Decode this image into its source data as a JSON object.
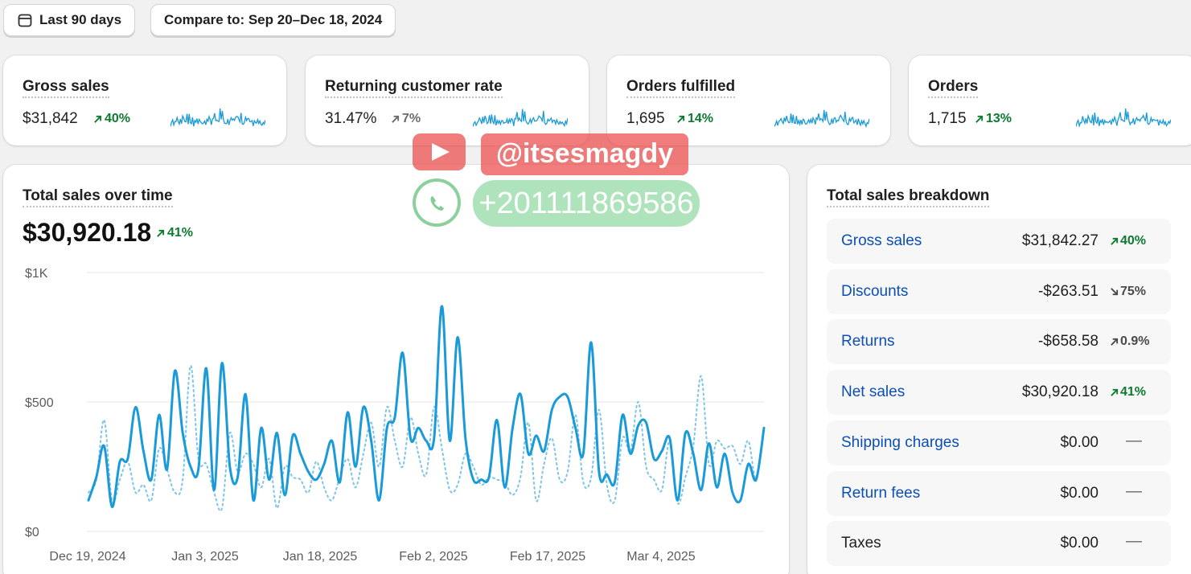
{
  "toolbar": {
    "date_range_label": "Last 90 days",
    "compare_label": "Compare to: Sep 20–Dec 18, 2024"
  },
  "metrics": [
    {
      "title": "Gross sales",
      "value": "$31,842",
      "delta": "40%",
      "trend": "up"
    },
    {
      "title": "Returning customer rate",
      "value": "31.47%",
      "delta": "7%",
      "trend": "neutral"
    },
    {
      "title": "Orders fulfilled",
      "value": "1,695",
      "delta": "14%",
      "trend": "up"
    },
    {
      "title": "Orders",
      "value": "1,715",
      "delta": "13%",
      "trend": "up"
    }
  ],
  "sales_chart": {
    "title": "Total sales over time",
    "total": "$30,920.18",
    "delta": "41%"
  },
  "chart_data": {
    "type": "line",
    "y_ticks": [
      "$1K",
      "$500",
      "$0"
    ],
    "ylim": [
      0,
      1000
    ],
    "x_ticks": [
      "Dec 19, 2024",
      "Jan 3, 2025",
      "Jan 18, 2025",
      "Feb 2, 2025",
      "Feb 17, 2025",
      "Mar 4, 2025"
    ],
    "x_range_days": [
      0,
      90
    ],
    "series": [
      {
        "style": "solid",
        "color": "#1a9ad9",
        "values": [
          120,
          210,
          330,
          95,
          270,
          280,
          480,
          310,
          200,
          450,
          240,
          620,
          380,
          250,
          240,
          630,
          160,
          650,
          250,
          210,
          530,
          120,
          400,
          200,
          380,
          140,
          370,
          300,
          230,
          200,
          260,
          350,
          190,
          460,
          250,
          480,
          350,
          120,
          400,
          440,
          690,
          360,
          400,
          350,
          360,
          870,
          350,
          750,
          360,
          200,
          200,
          210,
          430,
          170,
          400,
          530,
          300,
          370,
          310,
          470,
          520,
          520,
          400,
          300,
          730,
          230,
          220,
          190,
          450,
          300,
          410,
          420,
          280,
          310,
          360,
          120,
          380,
          300,
          160,
          340,
          170,
          300,
          150,
          120,
          260,
          200,
          400
        ]
      },
      {
        "style": "dotted",
        "color": "#7cc4e8",
        "values": [
          150,
          200,
          430,
          120,
          200,
          270,
          150,
          180,
          120,
          320,
          240,
          150,
          200,
          640,
          280,
          260,
          150,
          90,
          380,
          230,
          300,
          260,
          170,
          280,
          90,
          250,
          210,
          200,
          150,
          270,
          170,
          120,
          210,
          280,
          170,
          300,
          420,
          250,
          480,
          350,
          250,
          440,
          300,
          220,
          480,
          320,
          160,
          180,
          300,
          250,
          180,
          210,
          200,
          190,
          140,
          210,
          420,
          120,
          260,
          360,
          200,
          230,
          450,
          190,
          210,
          470,
          180,
          120,
          360,
          310,
          500,
          250,
          200,
          160,
          350,
          110,
          210,
          330,
          600,
          260,
          350,
          320,
          330,
          260,
          350,
          200,
          400
        ]
      }
    ]
  },
  "breakdown": {
    "title": "Total sales breakdown",
    "rows": [
      {
        "label": "Gross sales",
        "amount": "$31,842.27",
        "change": "40%",
        "kind": "up",
        "link": true
      },
      {
        "label": "Discounts",
        "amount": "-$263.51",
        "change": "75%",
        "kind": "down",
        "link": true
      },
      {
        "label": "Returns",
        "amount": "-$658.58",
        "change": "0.9%",
        "kind": "upgray",
        "link": true
      },
      {
        "label": "Net sales",
        "amount": "$30,920.18",
        "change": "41%",
        "kind": "up",
        "link": true
      },
      {
        "label": "Shipping charges",
        "amount": "$0.00",
        "change": "—",
        "kind": "dash",
        "link": true
      },
      {
        "label": "Return fees",
        "amount": "$0.00",
        "change": "—",
        "kind": "dash",
        "link": true
      },
      {
        "label": "Taxes",
        "amount": "$0.00",
        "change": "—",
        "kind": "dash",
        "link": false
      }
    ]
  },
  "watermark": {
    "handle": "@itsesmagdy",
    "phone": "+201111869586"
  },
  "colors": {
    "link": "#0b4fb3",
    "positive": "#0c7a2f",
    "series_main": "#1a9ad9",
    "series_compare": "#7cc4e8"
  }
}
